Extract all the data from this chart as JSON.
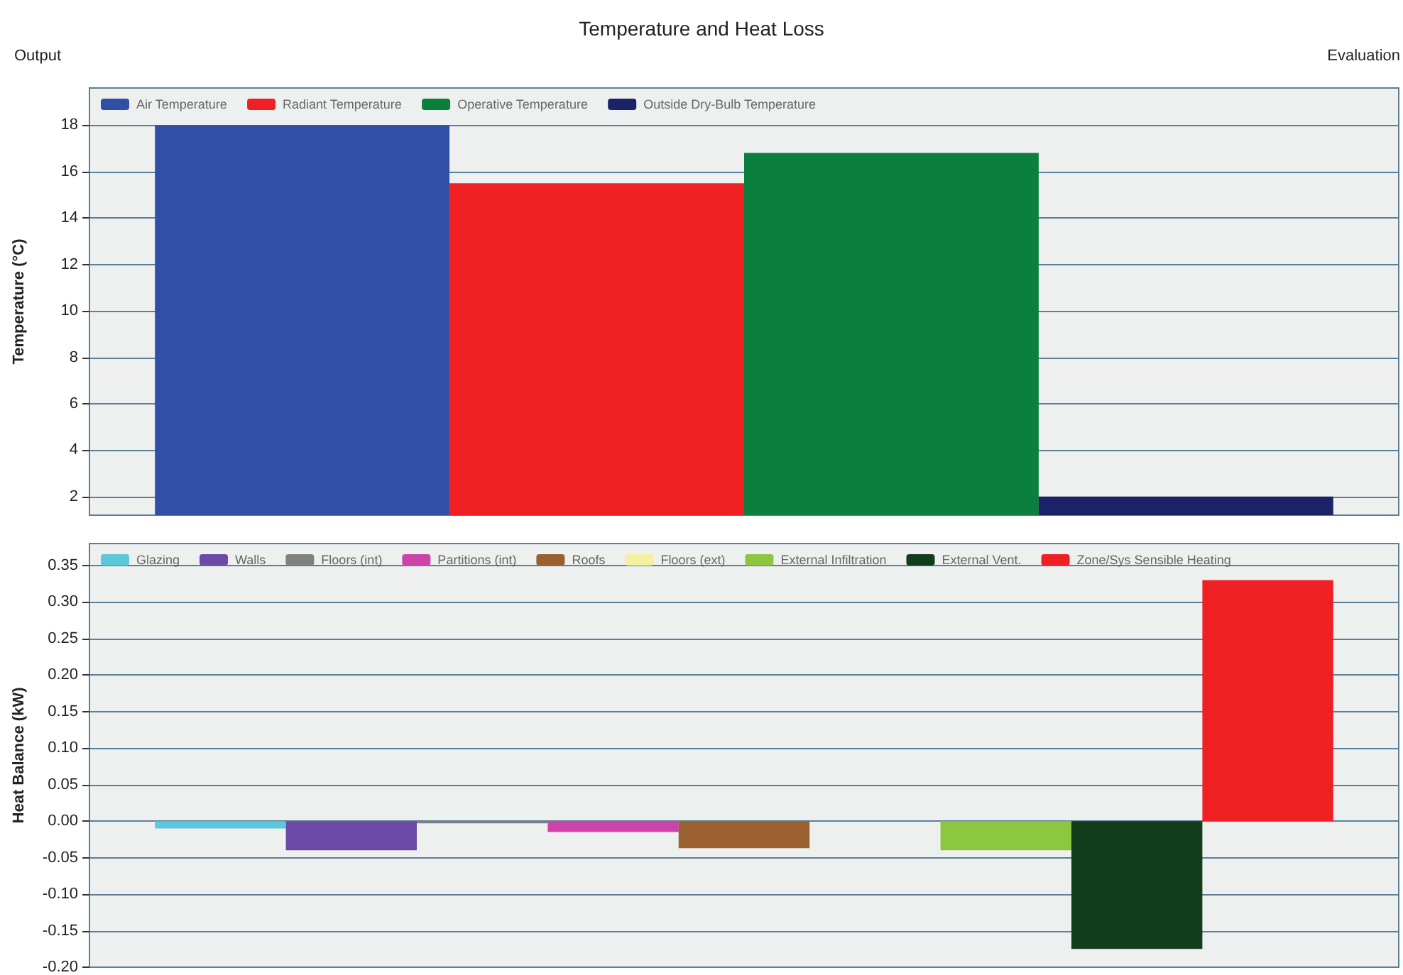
{
  "chart_data": [
    {
      "type": "bar",
      "title": "Temperature and Heat Loss",
      "annotations": [
        "Output",
        "Evaluation"
      ],
      "ylabel": "Temperature (°C)",
      "categories": [
        null
      ],
      "series": [
        {
          "name": "Air Temperature",
          "color": "#3050a8",
          "values": [
            18.0
          ]
        },
        {
          "name": "Radiant Temperature",
          "color": "#ee2024",
          "values": [
            15.5
          ]
        },
        {
          "name": "Operative Temperature",
          "color": "#0a7f3e",
          "values": [
            16.8
          ]
        },
        {
          "name": "Outside Dry-Bulb Temperature",
          "color": "#1c2268",
          "values": [
            2.0
          ]
        }
      ],
      "ylim": [
        1.2,
        19.6
      ],
      "yticks": [
        2,
        4,
        6,
        8,
        10,
        12,
        14,
        16,
        18
      ],
      "grid": "y",
      "legend": "top left",
      "tick_labels": "y"
    },
    {
      "type": "bar",
      "ylabel": "Heat Balance (kW)",
      "categories": [
        null
      ],
      "series": [
        {
          "name": "Glazing",
          "color": "#5bc8dc",
          "values": [
            -0.01
          ]
        },
        {
          "name": "Walls",
          "color": "#6b4aa8",
          "values": [
            -0.04
          ]
        },
        {
          "name": "Floors (int)",
          "color": "#808080",
          "values": [
            -0.003
          ]
        },
        {
          "name": "Partitions (int)",
          "color": "#cc44aa",
          "values": [
            -0.015
          ]
        },
        {
          "name": "Roofs",
          "color": "#9a6030",
          "values": [
            -0.037
          ]
        },
        {
          "name": "Floors (ext)",
          "color": "#f5f0a0",
          "values": [
            0
          ]
        },
        {
          "name": "External Infiltration",
          "color": "#8dc63f",
          "values": [
            -0.04
          ]
        },
        {
          "name": "External Vent.",
          "color": "#123d1a",
          "values": [
            -0.175
          ]
        },
        {
          "name": "Zone/Sys Sensible Heating",
          "color": "#ee2024",
          "values": [
            0.33
          ]
        }
      ],
      "ylim": [
        -0.2,
        0.38
      ],
      "yticks": [
        {
          "value": -0.2,
          "label": "-0.20"
        },
        {
          "value": -0.15,
          "label": "-0.15"
        },
        {
          "value": -0.1,
          "label": "-0.10"
        },
        {
          "value": -0.05,
          "label": "-0.05"
        },
        {
          "value": 0,
          "label": "0.00"
        },
        {
          "value": 0.05,
          "label": "0.05"
        },
        {
          "value": 0.1,
          "label": "0.10"
        },
        {
          "value": 0.15,
          "label": "0.15"
        },
        {
          "value": 0.2,
          "label": "0.20"
        },
        {
          "value": 0.25,
          "label": "0.25"
        },
        {
          "value": 0.3,
          "label": "0.30"
        },
        {
          "value": 0.35,
          "label": "0.35"
        }
      ],
      "grid": "y",
      "legend": "top left",
      "tick_labels": "y"
    }
  ]
}
